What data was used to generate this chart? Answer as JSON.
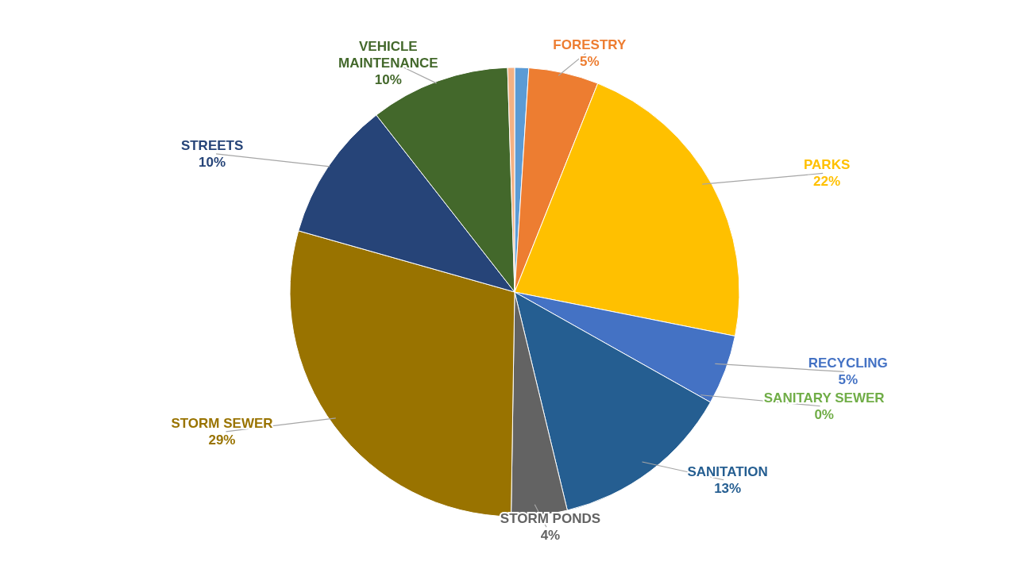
{
  "chart_data": {
    "type": "pie",
    "categories": [
      null,
      "FORESTRY",
      "PARKS",
      "RECYCLING",
      "SANITARY SEWER",
      "SANITATION",
      "STORM PONDS",
      "STORM SEWER",
      "STREETS",
      "VEHICLE MAINTENANCE",
      null
    ],
    "values": [
      1,
      5,
      22,
      5,
      0,
      13,
      4,
      29,
      10,
      10,
      0.5
    ],
    "colors": [
      "#5b9bd5",
      "#ed7d31",
      "#ffc000",
      "#4472c4",
      "#70ad47",
      "#255e91",
      "#636363",
      "#997300",
      "#264478",
      "#43682b",
      "#f4b183"
    ],
    "value_labels": [
      null,
      "5%",
      "22%",
      "5%",
      "0%",
      "13%",
      "4%",
      "29%",
      "10%",
      "10%",
      null
    ]
  }
}
